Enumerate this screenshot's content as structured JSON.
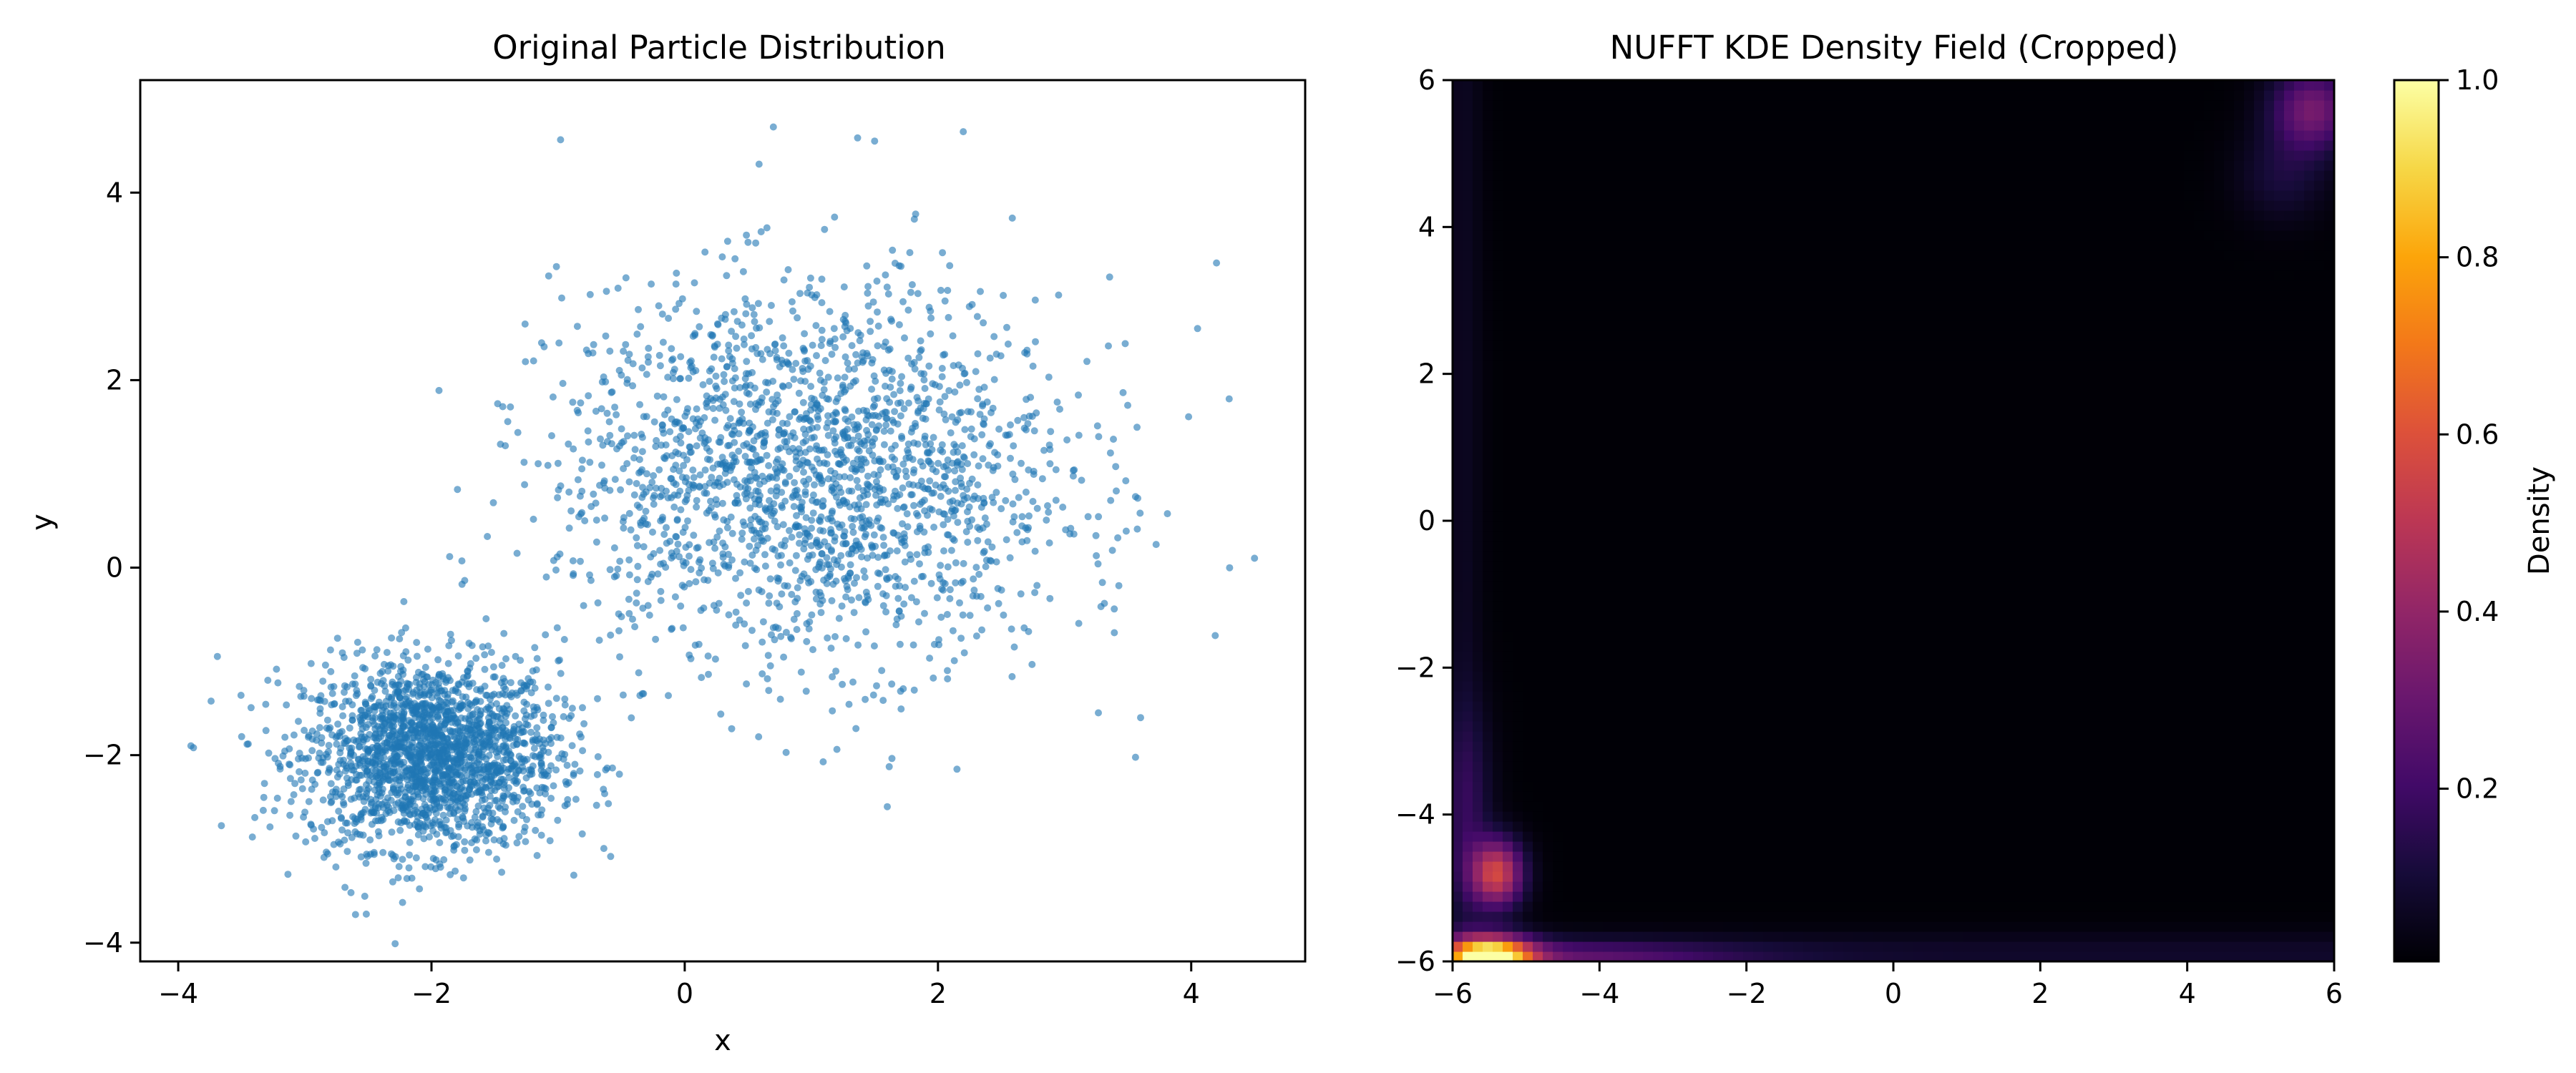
{
  "chart_data": [
    {
      "type": "scatter",
      "title": "Original Particle Distribution",
      "xlabel": "x",
      "ylabel": "y",
      "xlim": [
        -4.3,
        4.9
      ],
      "ylim": [
        -4.2,
        5.2
      ],
      "xticks": [
        -4,
        -2,
        0,
        2,
        4
      ],
      "yticks": [
        -4,
        -2,
        0,
        2,
        4
      ],
      "grid": false,
      "marker_color": "#1f77b4",
      "marker_alpha": 0.6,
      "clusters": [
        {
          "center": [
            -2.0,
            -2.0
          ],
          "std": [
            0.5,
            0.5
          ],
          "approx_count": 2000
        },
        {
          "center": [
            1.0,
            1.0
          ],
          "std": [
            1.0,
            1.0
          ],
          "approx_count": 2000
        }
      ],
      "notable_points": [
        {
          "x": 0.7,
          "y": 4.7
        },
        {
          "x": 1.5,
          "y": 4.55
        },
        {
          "x": 2.2,
          "y": 4.65
        },
        {
          "x": 4.5,
          "y": 0.1
        },
        {
          "x": 4.2,
          "y": 3.25
        },
        {
          "x": 4.05,
          "y": 2.55
        },
        {
          "x": 4.3,
          "y": 1.8
        },
        {
          "x": 3.6,
          "y": -1.6
        },
        {
          "x": -3.9,
          "y": -1.9
        },
        {
          "x": -2.6,
          "y": -3.7
        },
        {
          "x": 1.6,
          "y": -2.55
        },
        {
          "x": 2.15,
          "y": -2.15
        }
      ]
    },
    {
      "type": "heatmap",
      "title": "NUFFT KDE Density Field (Cropped)",
      "xlabel": "",
      "ylabel": "",
      "xlim": [
        -6,
        6
      ],
      "ylim": [
        -6,
        6
      ],
      "xticks": [
        -6,
        -4,
        -2,
        0,
        2,
        4,
        6
      ],
      "yticks": [
        -6,
        -4,
        -2,
        0,
        2,
        4,
        6
      ],
      "colormap": "inferno",
      "colorbar": {
        "label": "Density",
        "range": [
          0.005,
          1.0
        ],
        "ticks": [
          "0.2",
          "0.4",
          "0.6",
          "0.8",
          "1.0"
        ],
        "tick_values": [
          0.2,
          0.4,
          0.6,
          0.8,
          1.0
        ]
      },
      "hotspots": [
        {
          "x": -5.5,
          "y": -5.9,
          "density": 1.0
        },
        {
          "x": -5.4,
          "y": -4.8,
          "density": 0.55
        },
        {
          "x": 5.6,
          "y": 5.6,
          "density": 0.32
        }
      ]
    }
  ]
}
